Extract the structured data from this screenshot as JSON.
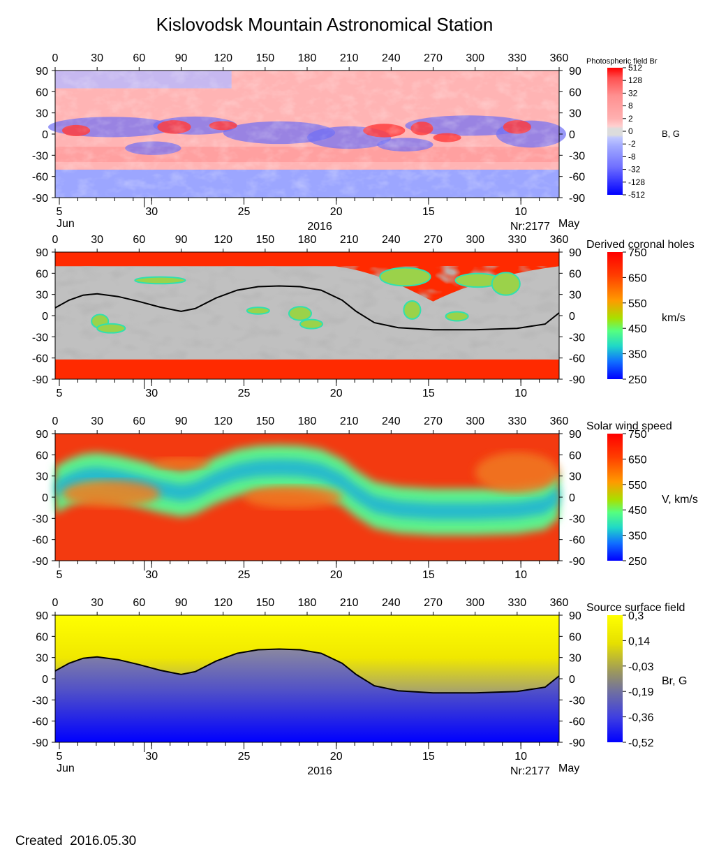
{
  "title": "Kislovodsk Mountain Astronomical Station",
  "created": "Created  2016.05.30",
  "chart_data": [
    {
      "type": "heatmap",
      "id": "photospheric",
      "colorbar_title": "Photospheric field Br",
      "unit": "B, G",
      "colorbar_ticks": [
        "512",
        "128",
        "32",
        "8",
        "2",
        "0",
        "-2",
        "-8",
        "-32",
        "-128",
        "-512"
      ],
      "colors": {
        "positive": "#ff0000",
        "negative": "#0000ff",
        "neutral": "#d8d8d8"
      },
      "longitude_ticks": [
        0,
        30,
        60,
        90,
        120,
        150,
        180,
        210,
        240,
        270,
        300,
        330,
        360
      ],
      "latitude_ticks": [
        90,
        60,
        30,
        0,
        -30,
        -60,
        -90
      ],
      "date_ticks": [
        "5",
        "30",
        "25",
        "20",
        "15",
        "10"
      ],
      "month_left": "Jun",
      "month_right": "May",
      "year": "2016",
      "rotation": "Nr:2177"
    },
    {
      "type": "heatmap",
      "id": "coronal_holes",
      "colorbar_title": "Derived coronal holes",
      "unit": "km/s",
      "colorbar_ticks": [
        "750",
        "650",
        "550",
        "450",
        "350",
        "250"
      ],
      "colors": {
        "dark_gray": "#7b7b7b",
        "light_gray": "#c0c0c0",
        "high_speed": "#ff2a00"
      },
      "longitude_ticks": [
        0,
        30,
        60,
        90,
        120,
        150,
        180,
        210,
        240,
        270,
        300,
        330,
        360
      ],
      "latitude_ticks": [
        90,
        60,
        30,
        0,
        -30,
        -60,
        -90
      ],
      "date_ticks": [
        "5",
        "30",
        "25",
        "20",
        "15",
        "10"
      ],
      "neutral_line": [
        [
          0,
          11
        ],
        [
          10,
          22
        ],
        [
          20,
          29
        ],
        [
          30,
          31
        ],
        [
          45,
          27
        ],
        [
          60,
          20
        ],
        [
          75,
          12
        ],
        [
          90,
          6
        ],
        [
          100,
          10
        ],
        [
          115,
          25
        ],
        [
          130,
          36
        ],
        [
          145,
          41
        ],
        [
          160,
          42
        ],
        [
          175,
          41
        ],
        [
          190,
          36
        ],
        [
          205,
          22
        ],
        [
          215,
          6
        ],
        [
          228,
          -10
        ],
        [
          245,
          -17
        ],
        [
          270,
          -20
        ],
        [
          300,
          -20
        ],
        [
          330,
          -18
        ],
        [
          350,
          -12
        ],
        [
          360,
          4
        ]
      ]
    },
    {
      "type": "heatmap",
      "id": "solar_wind",
      "colorbar_title": "Solar wind speed",
      "unit": "V, km/s",
      "colorbar_ticks": [
        "750",
        "650",
        "550",
        "450",
        "350",
        "250"
      ],
      "longitude_ticks": [
        0,
        30,
        60,
        90,
        120,
        150,
        180,
        210,
        240,
        270,
        300,
        330,
        360
      ],
      "latitude_ticks": [
        90,
        60,
        30,
        0,
        -30,
        -60,
        -90
      ],
      "date_ticks": [
        "5",
        "30",
        "25",
        "20",
        "15",
        "10"
      ]
    },
    {
      "type": "heatmap",
      "id": "source_surface",
      "colorbar_title": "Source surface field",
      "unit": "Br, G",
      "colorbar_ticks": [
        "0,3",
        "0,14",
        "-0,03",
        "-0,19",
        "-0,36",
        "-0,52"
      ],
      "colors": {
        "positive": "#ffff00",
        "neutral": "#8a8a8a",
        "negative": "#0000ff"
      },
      "longitude_ticks": [
        0,
        30,
        60,
        90,
        120,
        150,
        180,
        210,
        240,
        270,
        300,
        330,
        360
      ],
      "latitude_ticks": [
        90,
        60,
        30,
        0,
        -30,
        -60,
        -90
      ],
      "date_ticks": [
        "5",
        "30",
        "25",
        "20",
        "15",
        "10"
      ],
      "month_left": "Jun",
      "month_right": "May",
      "year": "2016",
      "rotation": "Nr:2177",
      "neutral_line": [
        [
          0,
          11
        ],
        [
          10,
          22
        ],
        [
          20,
          29
        ],
        [
          30,
          31
        ],
        [
          45,
          27
        ],
        [
          60,
          20
        ],
        [
          75,
          12
        ],
        [
          90,
          6
        ],
        [
          100,
          10
        ],
        [
          115,
          25
        ],
        [
          130,
          36
        ],
        [
          145,
          41
        ],
        [
          160,
          42
        ],
        [
          175,
          41
        ],
        [
          190,
          36
        ],
        [
          205,
          22
        ],
        [
          215,
          6
        ],
        [
          228,
          -10
        ],
        [
          245,
          -17
        ],
        [
          270,
          -20
        ],
        [
          300,
          -20
        ],
        [
          330,
          -18
        ],
        [
          350,
          -12
        ],
        [
          360,
          4
        ]
      ]
    }
  ]
}
